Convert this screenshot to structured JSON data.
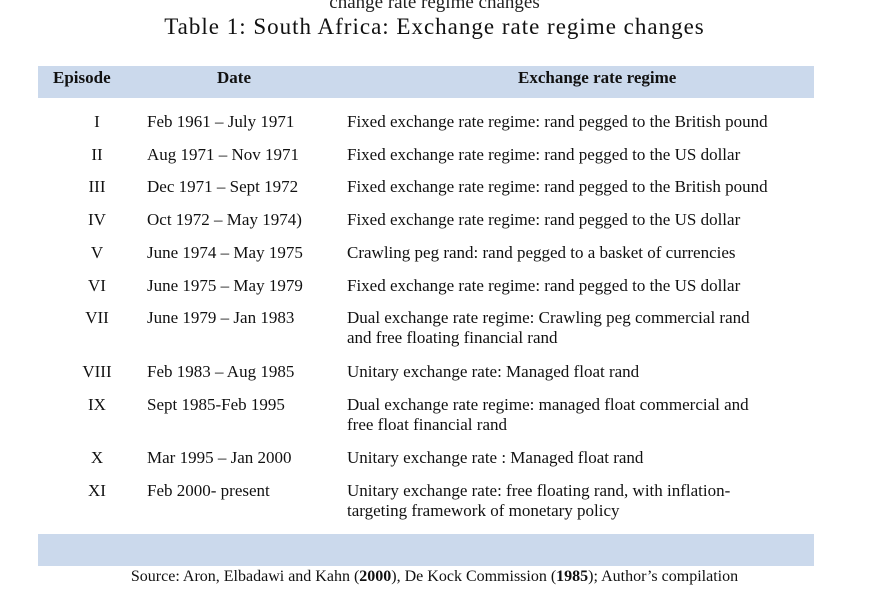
{
  "document": {
    "clipped_heading": "change rate regime changes",
    "title": "Table 1: South Africa: Exchange rate regime changes",
    "headers": {
      "episode": "Episode",
      "date": "Date",
      "regime": "Exchange rate regime"
    },
    "rows": [
      {
        "episode": "I",
        "date": "Feb 1961 – July 1971",
        "regime": "Fixed exchange rate regime: rand pegged to the British pound"
      },
      {
        "episode": "II",
        "date": "Aug 1971 – Nov 1971",
        "regime": "Fixed exchange rate regime: rand pegged to the US dollar"
      },
      {
        "episode": "III",
        "date": "Dec 1971 – Sept 1972",
        "regime": " Fixed exchange rate regime: rand pegged to the British pound"
      },
      {
        "episode": "IV",
        "date": "Oct 1972 – May 1974)",
        "regime": "Fixed exchange rate regime: rand pegged to the US dollar"
      },
      {
        "episode": "V",
        "date": "June 1974 – May 1975",
        "regime": "Crawling peg rand: rand pegged to a basket of currencies"
      },
      {
        "episode": "VI",
        "date": "June 1975 – May 1979",
        "regime": "Fixed exchange rate regime: rand pegged to the US dollar"
      },
      {
        "episode": "VII",
        "date": "June 1979 – Jan 1983",
        "regime": "Dual exchange rate regime: Crawling peg commercial rand\n and free floating financial rand"
      },
      {
        "episode": "VIII",
        "date": "Feb 1983 – Aug 1985",
        "regime": "Unitary exchange rate: Managed float rand"
      },
      {
        "episode": "IX",
        "date": "Sept 1985-Feb 1995",
        "regime": "Dual exchange rate regime: managed float commercial and\n free float financial rand"
      },
      {
        "episode": "X",
        "date": "Mar 1995 – Jan 2000",
        "regime": "Unitary exchange rate : Managed float rand"
      },
      {
        "episode": "XI",
        "date": "Feb 2000- present",
        "regime": "Unitary exchange rate: free floating rand, with inflation-\n targeting framework of monetary policy"
      }
    ],
    "source": {
      "prefix": "Source: Aron, Elbadawi and Kahn (",
      "year1": "2000",
      "mid": "), De Kock Commission (",
      "year2": "1985",
      "suffix": "); Author’s compilation"
    }
  }
}
